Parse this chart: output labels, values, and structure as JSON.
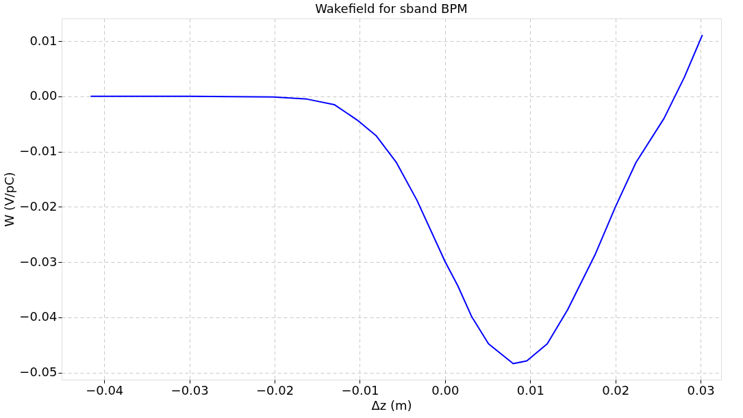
{
  "chart_data": {
    "type": "line",
    "title": "Wakefield for sband BPM",
    "xlabel": "Δz (m)",
    "ylabel": "W (V/pC)",
    "xlim": [
      -0.045,
      0.0324
    ],
    "ylim": [
      -0.0513,
      0.0141
    ],
    "xticks": [
      {
        "value": -0.04,
        "label": "−0.04"
      },
      {
        "value": -0.03,
        "label": "−0.03"
      },
      {
        "value": -0.02,
        "label": "−0.02"
      },
      {
        "value": -0.01,
        "label": "−0.01"
      },
      {
        "value": 0,
        "label": "0.00"
      },
      {
        "value": 0.01,
        "label": "0.01"
      },
      {
        "value": 0.02,
        "label": "0.02"
      },
      {
        "value": 0.03,
        "label": "0.03"
      }
    ],
    "yticks": [
      {
        "value": -0.05,
        "label": "−0.05"
      },
      {
        "value": -0.04,
        "label": "−0.04"
      },
      {
        "value": -0.03,
        "label": "−0.03"
      },
      {
        "value": -0.02,
        "label": "−0.02"
      },
      {
        "value": -0.01,
        "label": "−0.01"
      },
      {
        "value": 0,
        "label": "0.00"
      },
      {
        "value": 0.01,
        "label": "0.01"
      }
    ],
    "grid": true,
    "line_style": "solid",
    "series": [
      {
        "color": "#0000ff",
        "x": [
          -0.0416,
          -0.03,
          -0.0202,
          -0.0162,
          -0.013,
          -0.0103,
          -0.0081,
          -0.0057,
          -0.0033,
          0.0,
          0.0015,
          0.0031,
          0.0051,
          0.008,
          0.0096,
          0.012,
          0.0144,
          0.0176,
          0.02,
          0.0224,
          0.0257,
          0.0281,
          0.0302
        ],
        "values": [
          0.0,
          0.0,
          -0.0001,
          -0.0005,
          -0.0015,
          -0.0043,
          -0.0071,
          -0.012,
          -0.0188,
          -0.0299,
          -0.0343,
          -0.0398,
          -0.0448,
          -0.0484,
          -0.0479,
          -0.0448,
          -0.0386,
          -0.0287,
          -0.02,
          -0.012,
          -0.004,
          0.0035,
          0.0111
        ]
      }
    ]
  }
}
